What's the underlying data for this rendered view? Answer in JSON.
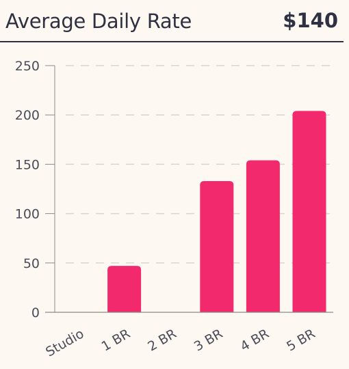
{
  "header": {
    "title": "Average Daily Rate",
    "value": "$140"
  },
  "colors": {
    "bar": "#f2296d",
    "grid": "#d9d6d0",
    "axis": "#8a8a8a",
    "text": "#2e3142"
  },
  "chart_data": {
    "type": "bar",
    "title": "Average Daily Rate",
    "xlabel": "",
    "ylabel": "",
    "categories": [
      "Studio",
      "1 BR",
      "2 BR",
      "3 BR",
      "4 BR",
      "5 BR"
    ],
    "values": [
      0,
      47,
      0,
      133,
      154,
      204
    ],
    "ylim": [
      0,
      250
    ],
    "yticks": [
      0,
      50,
      100,
      150,
      200,
      250
    ],
    "grid": true,
    "legend": "none"
  }
}
